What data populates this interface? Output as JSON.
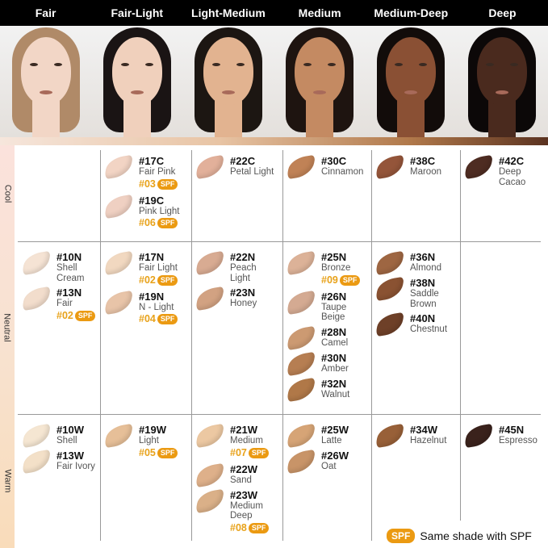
{
  "columns": [
    "Fair",
    "Fair-Light",
    "Light-Medium",
    "Medium",
    "Medium-Deep",
    "Deep"
  ],
  "face_colors": [
    {
      "skin": "#f2d6c6",
      "hair": "#b08a68"
    },
    {
      "skin": "#f0d0bc",
      "hair": "#1a1414"
    },
    {
      "skin": "#e2b390",
      "hair": "#1c1612"
    },
    {
      "skin": "#c48a62",
      "hair": "#1e1410"
    },
    {
      "skin": "#8a5034",
      "hair": "#120c0a"
    },
    {
      "skin": "#4a2a1e",
      "hair": "#0c0808"
    }
  ],
  "tones": [
    "Cool",
    "Neutral",
    "Warm"
  ],
  "spf_label": "SPF",
  "legend": "Same shade with SPF",
  "grid": [
    [
      [],
      [
        {
          "code": "#17C",
          "name": "Fair Pink",
          "spf": "#03",
          "color": "#f2d4c4"
        },
        {
          "code": "#19C",
          "name": "Pink Light",
          "spf": "#06",
          "color": "#efd0c2"
        }
      ],
      [
        {
          "code": "#22C",
          "name": "Petal Light",
          "color": "#e2b09a"
        }
      ],
      [
        {
          "code": "#30C",
          "name": "Cinnamon",
          "color": "#c08256"
        }
      ],
      [
        {
          "code": "#38C",
          "name": "Maroon",
          "color": "#94553a"
        }
      ],
      [
        {
          "code": "#42C",
          "name": "Deep\nCacao",
          "color": "#4e2c22"
        }
      ]
    ],
    [
      [
        {
          "code": "#10N",
          "name": "Shell\nCream",
          "color": "#f5e3d4"
        },
        {
          "code": "#13N",
          "name": "Fair",
          "spf": "#02",
          "color": "#f2ddcc"
        }
      ],
      [
        {
          "code": "#17N",
          "name": "Fair Light",
          "spf": "#02",
          "color": "#f1d8c0"
        },
        {
          "code": "#19N",
          "name": "N - Light",
          "spf": "#04",
          "color": "#e8c4a8"
        }
      ],
      [
        {
          "code": "#22N",
          "name": "Peach\nLight",
          "color": "#d8ab92"
        },
        {
          "code": "#23N",
          "name": "Honey",
          "color": "#d2a282"
        }
      ],
      [
        {
          "code": "#25N",
          "name": "Bronze",
          "spf": "#09",
          "color": "#dcb298"
        },
        {
          "code": "#26N",
          "name": "Taupe\nBeige",
          "color": "#d4aa92"
        },
        {
          "code": "#28N",
          "name": "Camel",
          "color": "#cc9a72"
        },
        {
          "code": "#30N",
          "name": "Amber",
          "color": "#b67e52"
        },
        {
          "code": "#32N",
          "name": "Walnut",
          "color": "#b07848"
        }
      ],
      [
        {
          "code": "#36N",
          "name": "Almond",
          "color": "#9e6642"
        },
        {
          "code": "#38N",
          "name": "Saddle\nBrown",
          "color": "#8a5232"
        },
        {
          "code": "#40N",
          "name": "Chestnut",
          "color": "#6e4028"
        }
      ],
      []
    ],
    [
      [
        {
          "code": "#10W",
          "name": "Shell",
          "color": "#f5e6d2"
        },
        {
          "code": "#13W",
          "name": "Fair Ivory",
          "color": "#f3e0c8"
        }
      ],
      [
        {
          "code": "#19W",
          "name": "Light",
          "spf": "#05",
          "color": "#e6bf98"
        }
      ],
      [
        {
          "code": "#21W",
          "name": "Medium",
          "spf": "#07",
          "color": "#ecc8a2"
        },
        {
          "code": "#22W",
          "name": "Sand",
          "color": "#deb08a"
        },
        {
          "code": "#23W",
          "name": "Medium\nDeep",
          "spf": "#08",
          "color": "#dab088"
        }
      ],
      [
        {
          "code": "#25W",
          "name": "Latte",
          "color": "#d6a476"
        },
        {
          "code": "#26W",
          "name": "Oat",
          "color": "#c89468"
        }
      ],
      [
        {
          "code": "#34W",
          "name": "Hazelnut",
          "color": "#986038"
        }
      ],
      [
        {
          "code": "#45N",
          "name": "Espresso",
          "color": "#3a221c"
        }
      ]
    ]
  ]
}
